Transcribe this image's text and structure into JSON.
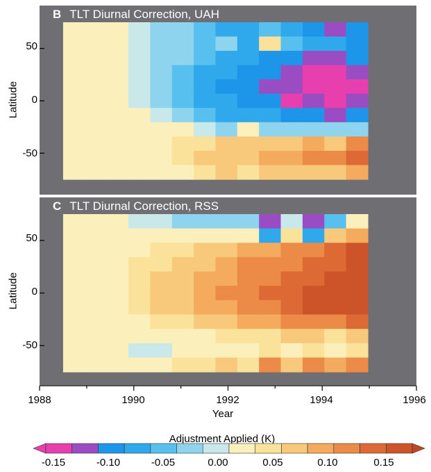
{
  "chart_data": [
    {
      "type": "heatmap",
      "panel_letter": "B",
      "title": "TLT Diurnal Correction, UAH",
      "xlabel": "Year",
      "ylabel": "Latitude",
      "xlim": [
        1988,
        1996
      ],
      "ylim": [
        -85,
        85
      ],
      "y_ticks": [
        "50",
        "0",
        "-50"
      ],
      "x_ticks": [
        "1988",
        "1990",
        "1992",
        "1994",
        "1996"
      ],
      "year_range": [
        1988.5,
        1995.0
      ],
      "lat_range": [
        -75,
        75
      ],
      "note_values": "Approximate adjustment (K) per year-column (1988.5-1995.0, step 0.5) and latitude-band (75N to 75S, step 15)",
      "values": [
        [
          0,
          0,
          0,
          -0.02,
          -0.03,
          -0.05,
          -0.06,
          -0.08,
          -0.09,
          -0.07,
          -0.1,
          -0.12,
          -0.14,
          -0.11
        ],
        [
          0,
          0,
          0,
          -0.02,
          -0.04,
          -0.05,
          -0.06,
          -0.04,
          -0.08,
          0.03,
          -0.06,
          -0.09,
          -0.08,
          -0.12
        ],
        [
          0,
          0,
          0,
          -0.02,
          -0.03,
          -0.05,
          -0.07,
          -0.09,
          -0.1,
          -0.11,
          -0.12,
          -0.13,
          -0.14,
          -0.12
        ],
        [
          0,
          0,
          0,
          -0.02,
          -0.04,
          -0.06,
          -0.08,
          -0.1,
          -0.11,
          -0.12,
          -0.14,
          -0.16,
          -0.16,
          -0.15
        ],
        [
          0,
          0,
          0,
          -0.02,
          -0.04,
          -0.07,
          -0.09,
          -0.11,
          -0.12,
          -0.13,
          -0.15,
          -0.16,
          -0.17,
          -0.16
        ],
        [
          0,
          0,
          0,
          -0.01,
          -0.03,
          -0.06,
          -0.08,
          -0.1,
          -0.11,
          -0.12,
          -0.16,
          -0.14,
          -0.17,
          -0.15
        ],
        [
          0,
          0,
          0,
          0.0,
          -0.02,
          -0.04,
          -0.06,
          -0.08,
          -0.09,
          -0.1,
          -0.12,
          -0.12,
          -0.14,
          -0.12
        ],
        [
          0,
          0,
          0,
          0.02,
          0.02,
          0.0,
          -0.02,
          -0.03,
          0.0,
          -0.03,
          -0.04,
          -0.05,
          -0.04,
          -0.03
        ],
        [
          0,
          0,
          0,
          0.01,
          0.02,
          0.03,
          0.04,
          0.05,
          0.06,
          0.07,
          0.06,
          0.08,
          0.07,
          0.1
        ],
        [
          0,
          0,
          0,
          0.0,
          0.02,
          0.03,
          0.05,
          0.06,
          0.07,
          0.08,
          0.09,
          0.11,
          0.1,
          0.13
        ],
        [
          0,
          0,
          0,
          0.0,
          0.01,
          0.02,
          0.04,
          0.05,
          0.04,
          0.06,
          0.06,
          0.07,
          0.06,
          0.09
        ]
      ]
    },
    {
      "type": "heatmap",
      "panel_letter": "C",
      "title": "TLT Diurnal Correction, RSS",
      "xlabel": "Year",
      "ylabel": "Latitude",
      "xlim": [
        1988,
        1996
      ],
      "ylim": [
        -85,
        85
      ],
      "y_ticks": [
        "50",
        "0",
        "-50"
      ],
      "x_ticks": [
        "1988",
        "1990",
        "1992",
        "1994",
        "1996"
      ],
      "year_range": [
        1988.5,
        1995.0
      ],
      "lat_range": [
        -75,
        75
      ],
      "values": [
        [
          0,
          0,
          0,
          -0.01,
          -0.01,
          -0.03,
          -0.04,
          -0.05,
          -0.04,
          -0.14,
          -0.02,
          -0.13,
          -0.06,
          0.01
        ],
        [
          0,
          0,
          0,
          0.0,
          0.01,
          0.01,
          0.0,
          0.02,
          0.02,
          -0.1,
          0.03,
          -0.1,
          0.05,
          0.08
        ],
        [
          0,
          0,
          0,
          0.02,
          0.03,
          0.04,
          0.05,
          0.07,
          0.08,
          0.09,
          0.1,
          0.11,
          0.13,
          0.15
        ],
        [
          0,
          0,
          0,
          0.03,
          0.04,
          0.05,
          0.07,
          0.08,
          0.1,
          0.11,
          0.12,
          0.13,
          0.14,
          0.16
        ],
        [
          0,
          0,
          0,
          0.03,
          0.05,
          0.06,
          0.08,
          0.09,
          0.11,
          0.12,
          0.13,
          0.14,
          0.15,
          0.16
        ],
        [
          0,
          0,
          0,
          0.04,
          0.05,
          0.07,
          0.08,
          0.1,
          0.12,
          0.13,
          0.14,
          0.15,
          0.16,
          0.17
        ],
        [
          0,
          0,
          0,
          0.03,
          0.05,
          0.06,
          0.08,
          0.09,
          0.11,
          0.12,
          0.14,
          0.15,
          0.15,
          0.16
        ],
        [
          0,
          0,
          0,
          0.02,
          0.03,
          0.04,
          0.06,
          0.07,
          0.08,
          0.09,
          0.1,
          0.11,
          0.12,
          0.13
        ],
        [
          0,
          0,
          0,
          0.0,
          0.01,
          0.02,
          0.02,
          0.03,
          0.04,
          0.04,
          0.05,
          0.05,
          0.04,
          0.06
        ],
        [
          0,
          0,
          0,
          -0.01,
          -0.01,
          0.0,
          0.01,
          0.02,
          0.02,
          0.03,
          0.02,
          0.03,
          0.02,
          0.03
        ],
        [
          0,
          0,
          0,
          0.0,
          0.02,
          0.04,
          0.03,
          0.06,
          0.04,
          0.1,
          0.07,
          0.11,
          0.08,
          0.12
        ]
      ]
    }
  ],
  "colorbar": {
    "title": "Adjustment Applied (K)",
    "tick_labels": [
      "-0.15",
      "-0.10",
      "-0.05",
      "0.00",
      "0.05",
      "0.10",
      "0.15"
    ],
    "tick_values": [
      -0.15,
      -0.1,
      -0.05,
      0.0,
      0.05,
      0.1,
      0.15
    ],
    "bins": [
      -0.175,
      -0.15,
      -0.125,
      -0.1,
      -0.075,
      -0.05,
      -0.025,
      0.0,
      0.025,
      0.05,
      0.075,
      0.1,
      0.125,
      0.15,
      0.175
    ],
    "colors": [
      "#e83fae",
      "#9a4dc2",
      "#1d95e8",
      "#30a9ec",
      "#58c0ee",
      "#8ed4ef",
      "#c9e8ea",
      "#fbf0bc",
      "#fbe29a",
      "#f8c97a",
      "#f4ab5e",
      "#ec8a47",
      "#dd6a35",
      "#cd5429"
    ],
    "end_low": "#e83fae",
    "end_high": "#c54422"
  }
}
